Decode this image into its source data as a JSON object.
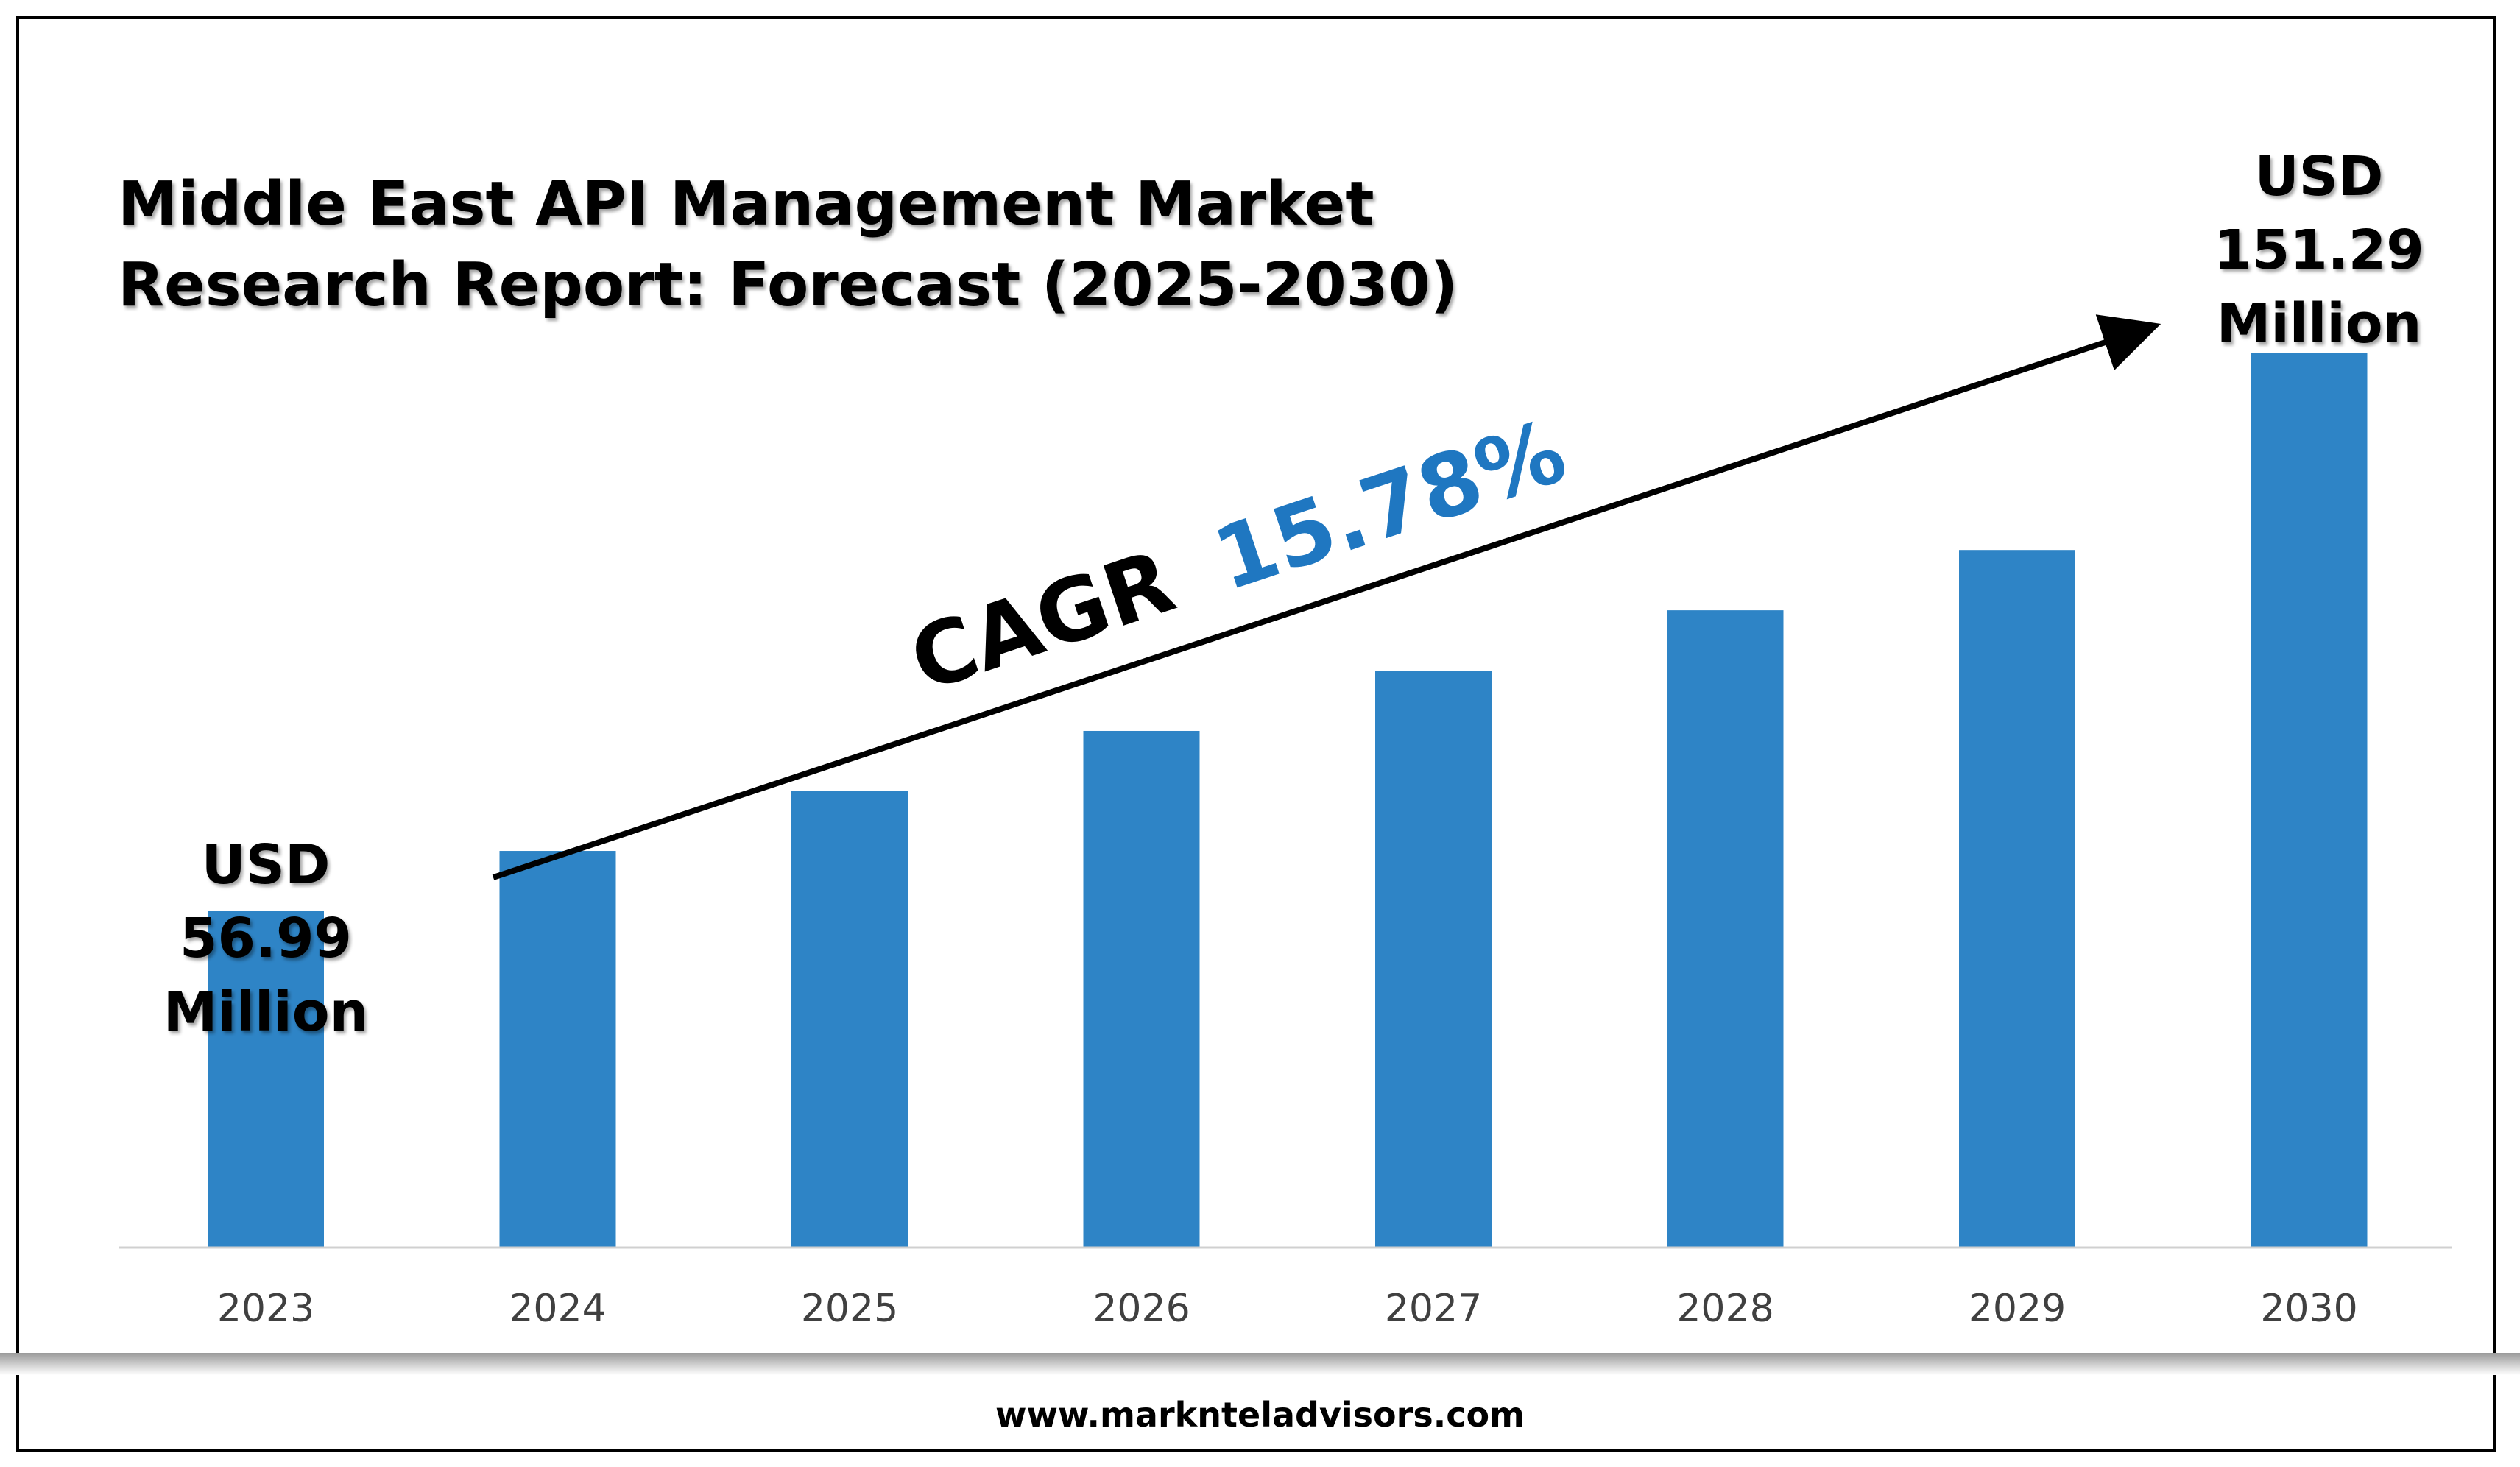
{
  "chart_data": {
    "type": "bar",
    "title_lines": [
      "Middle East API Management Market",
      "Research Report: Forecast (2025-2030)"
    ],
    "xlabel": "",
    "ylabel": "",
    "categories": [
      "2023",
      "2024",
      "2025",
      "2026",
      "2027",
      "2028",
      "2029",
      "2030"
    ],
    "values": [
      56.99,
      67.1,
      77.3,
      87.4,
      97.6,
      107.8,
      118.0,
      151.29
    ],
    "ylim": [
      0,
      155
    ],
    "grid": false,
    "bar_color": "#2e84c6",
    "annotations": {
      "first": [
        "USD",
        "56.99",
        "Million"
      ],
      "last": [
        "USD",
        "151.29",
        "Million"
      ],
      "cagr_label": "CAGR",
      "cagr_value": "15.78%",
      "cagr_color": "#1f77c1"
    }
  },
  "footer": {
    "url": "www.marknteladvisors.com"
  }
}
